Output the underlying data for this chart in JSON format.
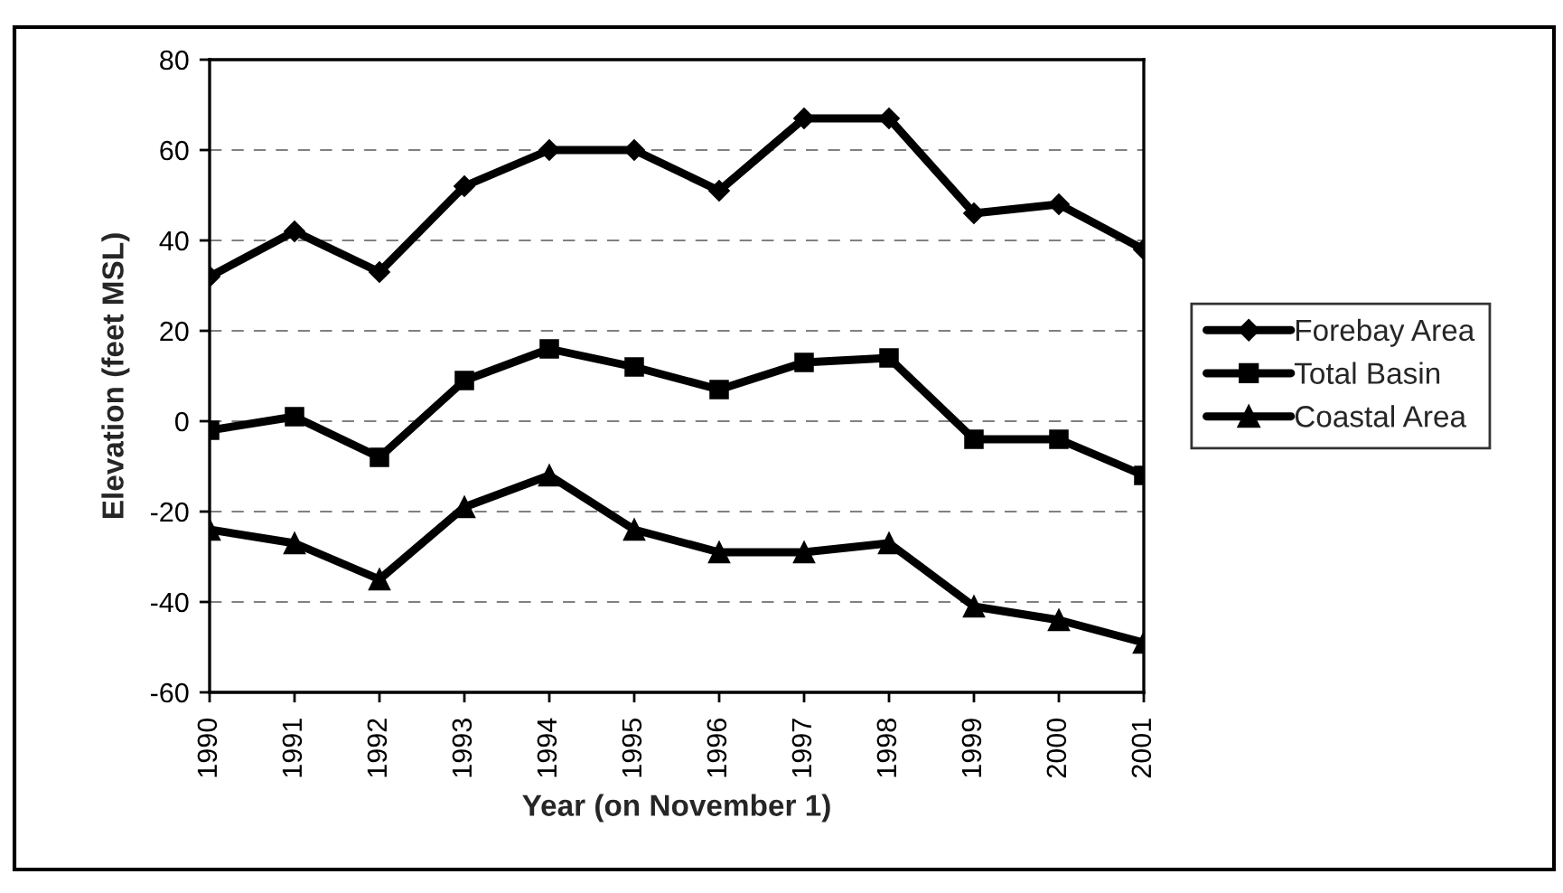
{
  "chart_data": {
    "type": "line",
    "xlabel": "Year (on November 1)",
    "ylabel": "Elevation (feet MSL)",
    "categories": [
      "1990",
      "1991",
      "1992",
      "1993",
      "1994",
      "1995",
      "1996",
      "1997",
      "1998",
      "1999",
      "2000",
      "2001"
    ],
    "series": [
      {
        "name": "Forebay Area",
        "color": "#000000",
        "marker": "diamond",
        "values": [
          32,
          42,
          33,
          52,
          60,
          60,
          51,
          67,
          67,
          46,
          48,
          38
        ]
      },
      {
        "name": "Total Basin",
        "color": "#000000",
        "marker": "square",
        "values": [
          -2,
          1,
          -8,
          9,
          16,
          12,
          7,
          13,
          14,
          -4,
          -4,
          -12
        ]
      },
      {
        "name": "Coastal Area",
        "color": "#000000",
        "marker": "triangle",
        "values": [
          -24,
          -27,
          -35,
          -19,
          -12,
          -24,
          -29,
          -29,
          -27,
          -41,
          -44,
          -49
        ]
      }
    ],
    "ylim": [
      -60,
      80
    ],
    "yticks": [
      -60,
      -40,
      -20,
      0,
      20,
      40,
      60,
      80
    ],
    "grid": "y",
    "legend": "right",
    "line_style": "solid"
  }
}
